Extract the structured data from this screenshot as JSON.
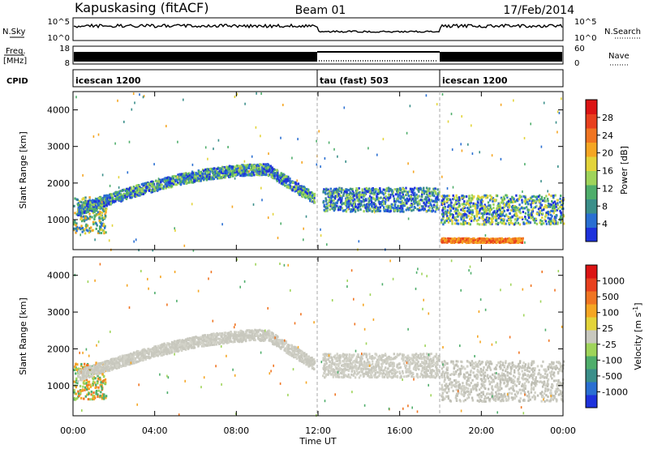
{
  "header": {
    "station": "Kapuskasing (fitACF)",
    "beam": "Beam 01",
    "date": "17/Feb/2014"
  },
  "panels": {
    "nsky": {
      "left_label": "N.Sky",
      "tick_top": "10^5",
      "tick_bottom": "10^0",
      "right_tick_top": "10^5",
      "right_tick_bottom": "10^0",
      "right_label": "N.Search"
    },
    "freq": {
      "left_label_1": "Freq.",
      "left_label_2": "[MHz]",
      "tick_top": "18",
      "tick_bottom": "8",
      "right_tick_top": "60",
      "right_tick_bottom": "0",
      "right_label": "Nave"
    },
    "cpid": {
      "label": "CPID",
      "segments": [
        "icescan 1200",
        "tau (fast) 503",
        "icescan 1200"
      ]
    }
  },
  "chart_data": [
    {
      "type": "heatmap",
      "title": "",
      "xlabel": "Time UT",
      "ylabel": "Slant Range [km]",
      "x_ticks": [
        "00:00",
        "04:00",
        "08:00",
        "12:00",
        "16:00",
        "20:00",
        "00:00"
      ],
      "x_range_hours": [
        0,
        24
      ],
      "y_ticks": [
        1000,
        2000,
        3000,
        4000
      ],
      "ylim": [
        180,
        4500
      ],
      "colorbar": {
        "label": "Power [dB]",
        "ticks": [
          "4",
          "8",
          "12",
          "16",
          "20",
          "24",
          "28"
        ],
        "colors": [
          "#1e32dc",
          "#2a6fd2",
          "#3b8f8a",
          "#4fae6b",
          "#9fd45a",
          "#e3d43a",
          "#f5a623",
          "#f07522",
          "#e8401e",
          "#dc1414"
        ]
      },
      "scatter_bands": [
        {
          "name": "low-range",
          "t0": 0.0,
          "t1": 1.6,
          "r0": 650,
          "r1": 1650,
          "colors": [
            "#2a6fd2",
            "#3b8f8a",
            "#4fae6b",
            "#e3d43a",
            "#f5a623"
          ]
        },
        {
          "name": "arc",
          "t0": 0.2,
          "t1": 11.8,
          "r0": 1100,
          "r1": 2600,
          "colors": [
            "#1e32dc",
            "#2a6fd2",
            "#4fae6b",
            "#9fd45a"
          ]
        },
        {
          "name": "tau-band",
          "t0": 12.2,
          "t1": 17.9,
          "r0": 1250,
          "r1": 1900,
          "colors": [
            "#1e32dc",
            "#2a6fd2",
            "#3b8f8a",
            "#9fd45a"
          ]
        },
        {
          "name": "evening",
          "t0": 18.0,
          "t1": 24.0,
          "r0": 900,
          "r1": 1700,
          "colors": [
            "#1e32dc",
            "#2a6fd2",
            "#4fae6b",
            "#9fd45a",
            "#e3d43a"
          ]
        },
        {
          "name": "ground",
          "t0": 18.0,
          "t1": 22.0,
          "r0": 400,
          "r1": 520,
          "colors": [
            "#f5a623",
            "#e8401e",
            "#f07522"
          ]
        }
      ]
    },
    {
      "type": "heatmap",
      "title": "",
      "xlabel": "Time UT",
      "ylabel": "Slant Range [km]",
      "x_ticks": [
        "00:00",
        "04:00",
        "08:00",
        "12:00",
        "16:00",
        "20:00",
        "00:00"
      ],
      "x_range_hours": [
        0,
        24
      ],
      "y_ticks": [
        1000,
        2000,
        3000,
        4000
      ],
      "ylim": [
        180,
        4500
      ],
      "colorbar": {
        "label": "Velocity [m s^-1]",
        "label_main": "Velocity [m s",
        "label_exp": "-1",
        "label_end": "]",
        "ticks": [
          "1000",
          "500",
          "100",
          "25",
          "-25",
          "-100",
          "-500",
          "-1000"
        ],
        "colors": [
          "#1e32dc",
          "#2a6fd2",
          "#3b8f8a",
          "#4fae6b",
          "#9fd45a",
          "#c8c8be",
          "#e3d43a",
          "#f5a623",
          "#f07522",
          "#e8401e",
          "#dc1414"
        ]
      },
      "scatter_bands": [
        {
          "name": "low-range",
          "t0": 0.0,
          "t1": 1.6,
          "r0": 650,
          "r1": 1650,
          "colors": [
            "#f5a623",
            "#f07522",
            "#9fd45a",
            "#4fae6b"
          ]
        },
        {
          "name": "arc",
          "t0": 0.2,
          "t1": 11.8,
          "r0": 1100,
          "r1": 2600,
          "colors": [
            "#c8c8be",
            "#c8c8be",
            "#d2d2c8"
          ]
        },
        {
          "name": "tau-band",
          "t0": 12.2,
          "t1": 17.9,
          "r0": 1250,
          "r1": 1900,
          "colors": [
            "#c8c8be",
            "#d2d2c8"
          ]
        },
        {
          "name": "evening",
          "t0": 18.0,
          "t1": 24.0,
          "r0": 600,
          "r1": 1700,
          "colors": [
            "#c8c8be",
            "#d2d2c8",
            "#bebeb4"
          ]
        }
      ]
    }
  ]
}
